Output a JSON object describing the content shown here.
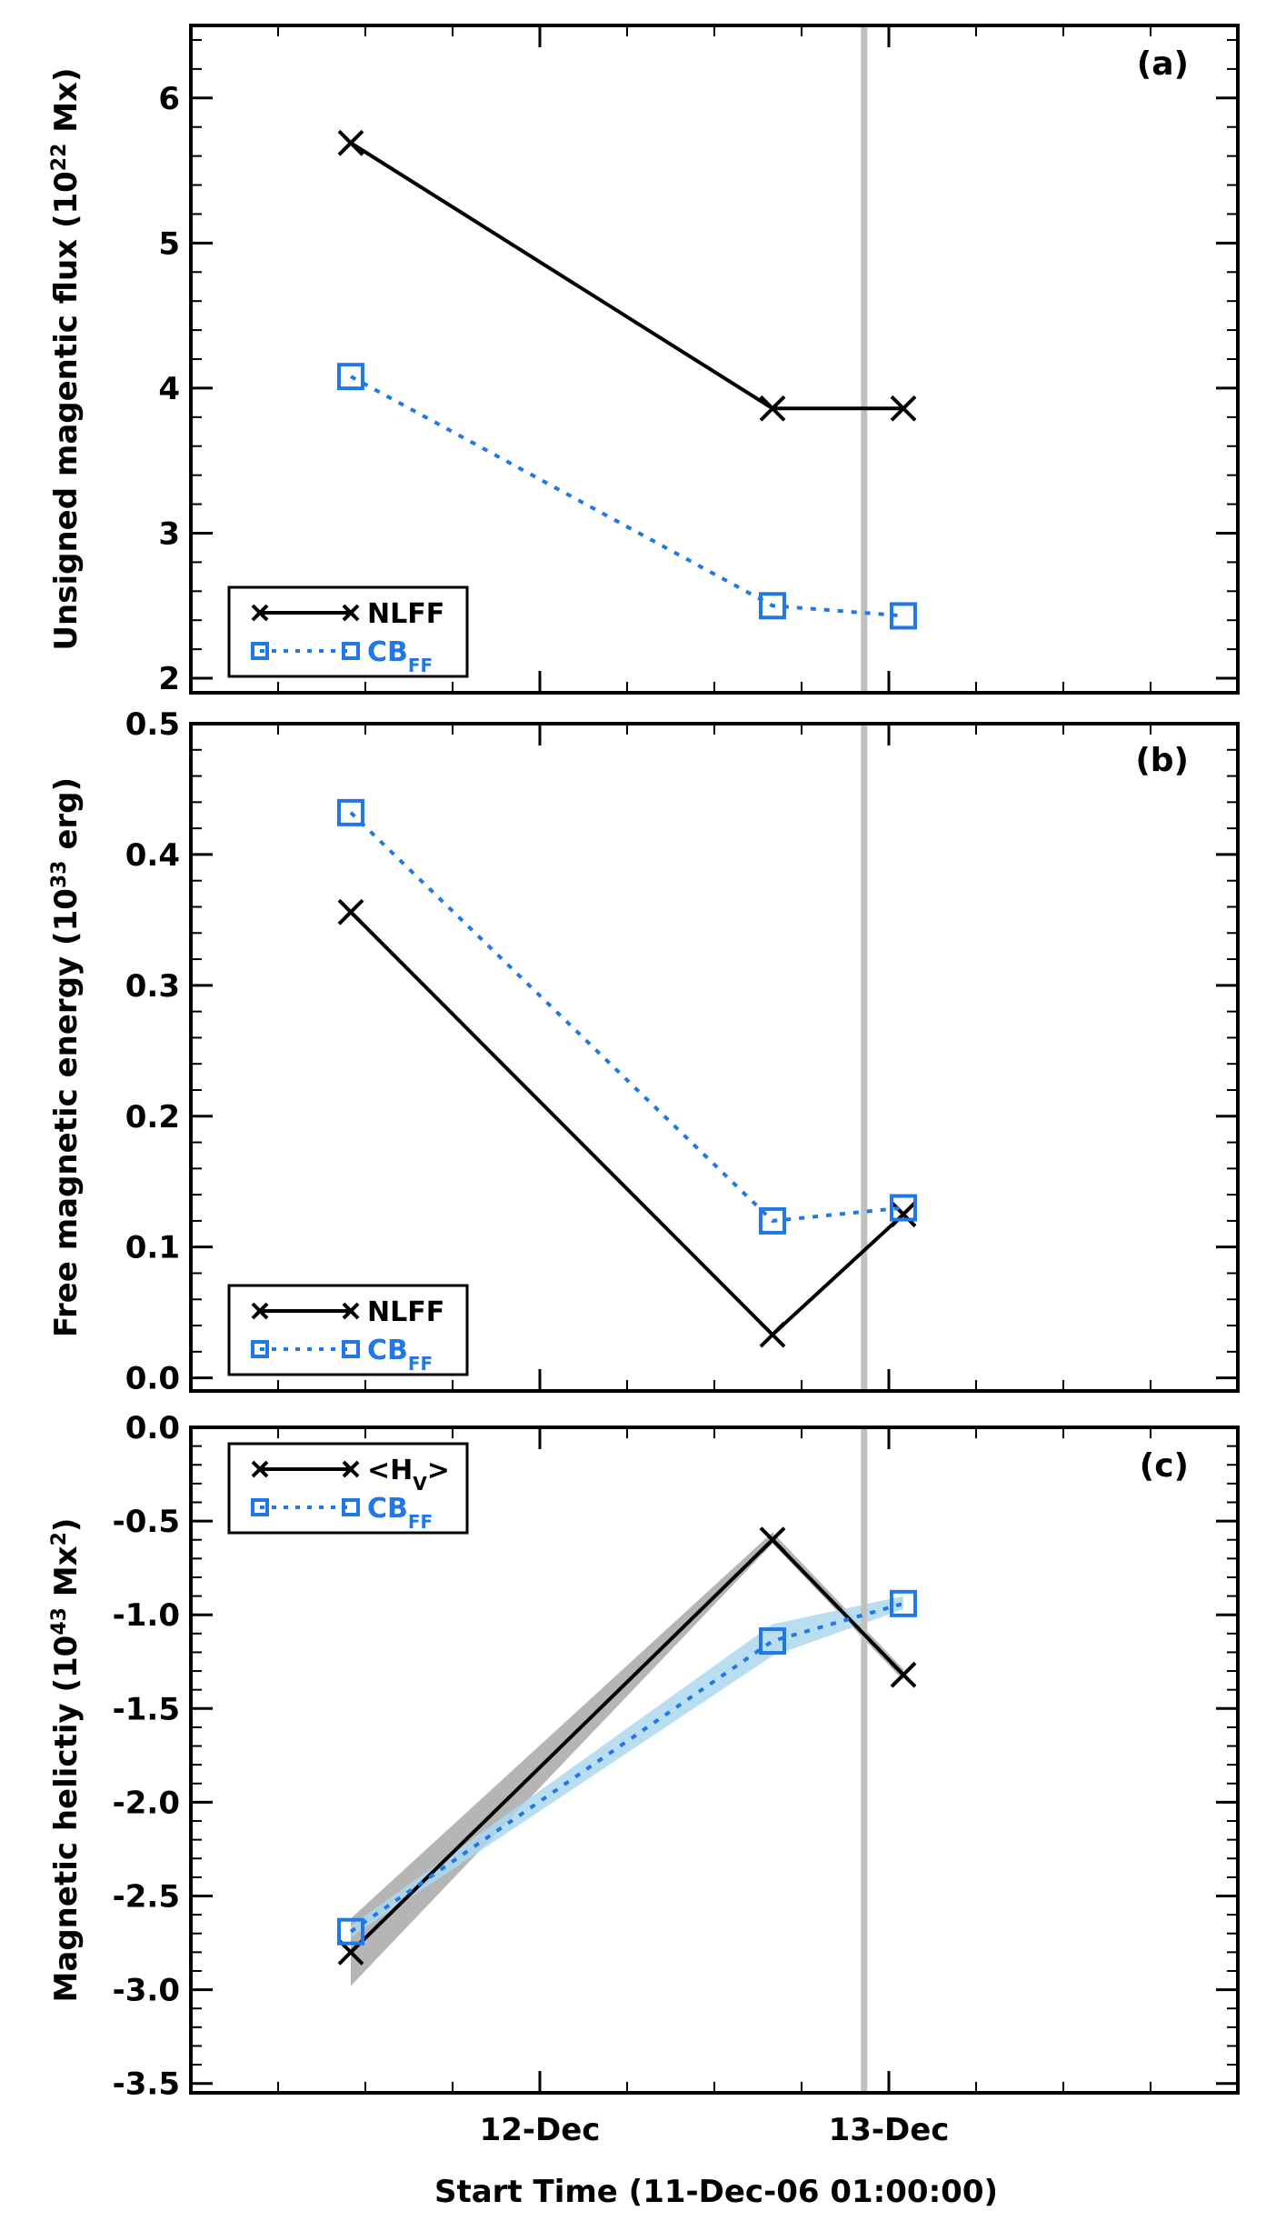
{
  "figure": {
    "x_axis_title": "Start Time (11-Dec-06 01:00:00)",
    "x_tick_labels": [
      "12-Dec",
      "13-Dec"
    ],
    "event_line_time_hours": 46.3
  },
  "colors": {
    "nlff": "#000000",
    "cbff": "#1f77e8",
    "event_line": "#c0c0c0",
    "nlff_band": "#a8a8a8",
    "cbff_band": "#add8f0"
  },
  "chart_data": [
    {
      "type": "line",
      "panel": "(a)",
      "title": "",
      "xlabel": "Start Time (11-Dec-06 01:00:00)",
      "ylabel": {
        "base": "Unsigned magentic flux (10",
        "sup": "22",
        "tail": " Mx)"
      },
      "ylim": [
        1.9,
        6.5
      ],
      "yticks": [
        "2",
        "3",
        "4",
        "5",
        "6"
      ],
      "x_unit": "hours since 11-Dec-06 01:00:00",
      "legend_position": "bottom-left",
      "series": [
        {
          "name": "NLFF",
          "legend_base": "NLFF",
          "legend_sub": "",
          "marker": "x",
          "style": "solid",
          "x": [
            11,
            40,
            49
          ],
          "values": [
            5.69,
            3.86,
            3.86
          ]
        },
        {
          "name": "CBFF",
          "legend_base": "CB",
          "legend_sub": "FF",
          "marker": "square",
          "style": "dotted",
          "x": [
            11,
            40,
            49
          ],
          "values": [
            4.08,
            2.5,
            2.43
          ]
        }
      ]
    },
    {
      "type": "line",
      "panel": "(b)",
      "title": "",
      "xlabel": "Start Time (11-Dec-06 01:00:00)",
      "ylabel": {
        "base": "Free magnetic energy (10",
        "sup": "33",
        "tail": " erg)"
      },
      "ylim": [
        -0.01,
        0.5
      ],
      "yticks": [
        "0.0",
        "0.1",
        "0.2",
        "0.3",
        "0.4",
        "0.5"
      ],
      "x_unit": "hours since 11-Dec-06 01:00:00",
      "legend_position": "bottom-left",
      "series": [
        {
          "name": "NLFF",
          "legend_base": "NLFF",
          "legend_sub": "",
          "marker": "x",
          "style": "solid",
          "x": [
            11,
            40,
            49
          ],
          "values": [
            0.356,
            0.033,
            0.125
          ]
        },
        {
          "name": "CBFF",
          "legend_base": "CB",
          "legend_sub": "FF",
          "marker": "square",
          "style": "dotted",
          "x": [
            11,
            40,
            49
          ],
          "values": [
            0.432,
            0.12,
            0.13
          ]
        }
      ]
    },
    {
      "type": "line",
      "panel": "(c)",
      "title": "",
      "xlabel": "Start Time (11-Dec-06 01:00:00)",
      "ylabel": {
        "base": "Magnetic helictiy (10",
        "sup": "43",
        "tail": " Mx",
        "sup2": "2",
        "tail2": ")"
      },
      "ylim": [
        -3.55,
        0.0
      ],
      "yticks": [
        "0.0",
        "-0.5",
        "-1.0",
        "-1.5",
        "-2.0",
        "-2.5",
        "-3.0",
        "-3.5"
      ],
      "x_unit": "hours since 11-Dec-06 01:00:00",
      "legend_position": "top-left",
      "series": [
        {
          "name": "<HV>",
          "legend_base": "<H",
          "legend_sub": "V",
          "legend_tail": ">",
          "marker": "x",
          "style": "solid",
          "x": [
            11,
            40,
            49
          ],
          "values": [
            -2.8,
            -0.6,
            -1.32
          ],
          "band": {
            "lower": [
              -2.98,
              -0.62,
              -1.35
            ],
            "upper": [
              -2.62,
              -0.56,
              -1.29
            ]
          }
        },
        {
          "name": "CBFF",
          "legend_base": "CB",
          "legend_sub": "FF",
          "marker": "square",
          "style": "dotted",
          "x": [
            11,
            40,
            49
          ],
          "values": [
            -2.69,
            -1.14,
            -0.94
          ],
          "band": {
            "lower": [
              -2.72,
              -1.22,
              -0.97
            ],
            "upper": [
              -2.66,
              -1.05,
              -0.9
            ]
          }
        }
      ]
    }
  ]
}
